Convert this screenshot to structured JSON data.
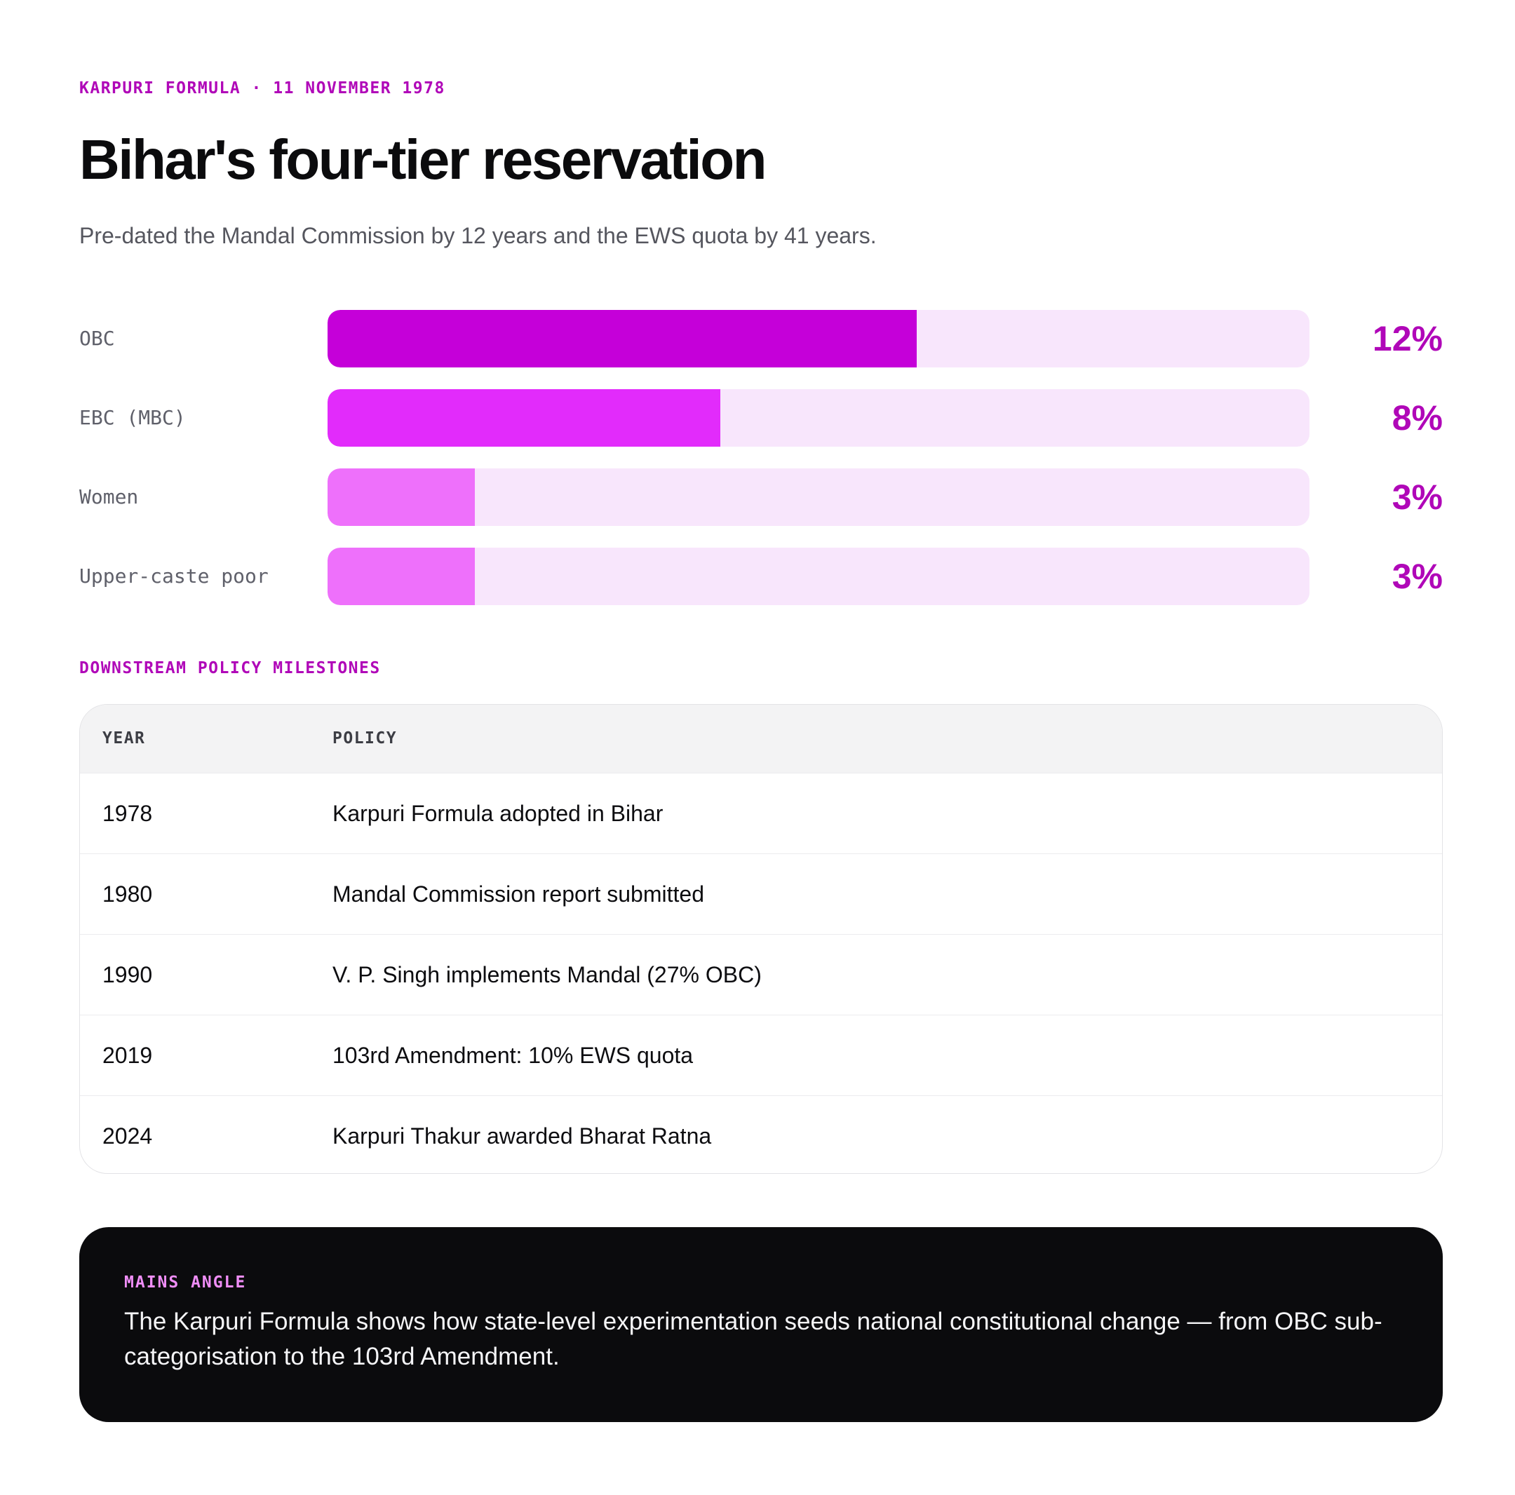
{
  "eyebrow": "KARPURI FORMULA · 11 NOVEMBER 1978",
  "title": "Bihar's four-tier reservation",
  "subtitle": "Pre-dated the Mandal Commission by 12 years and the EWS quota by 41 years.",
  "chart_data": {
    "type": "bar",
    "orientation": "horizontal",
    "categories": [
      "OBC",
      "EBC (MBC)",
      "Women",
      "Upper-caste poor"
    ],
    "values": [
      12,
      8,
      3,
      3
    ],
    "value_labels": [
      "12%",
      "8%",
      "3%",
      "3%"
    ],
    "unit": "%",
    "xlim": [
      0,
      20
    ],
    "colors": [
      "#c500d9",
      "#e22bfb",
      "#ee70fb",
      "#ee70fb"
    ],
    "track_color": "#f8e6fc",
    "grid": false
  },
  "milestones": {
    "section_label": "DOWNSTREAM POLICY MILESTONES",
    "headers": {
      "year": "YEAR",
      "policy": "POLICY"
    },
    "rows": [
      {
        "year": "1978",
        "policy": "Karpuri Formula adopted in Bihar"
      },
      {
        "year": "1980",
        "policy": "Mandal Commission report submitted"
      },
      {
        "year": "1990",
        "policy": "V. P. Singh implements Mandal (27% OBC)"
      },
      {
        "year": "2019",
        "policy": "103rd Amendment: 10% EWS quota"
      },
      {
        "year": "2024",
        "policy": "Karpuri Thakur awarded Bharat Ratna"
      }
    ]
  },
  "callout": {
    "label": "MAINS ANGLE",
    "text": "The Karpuri Formula shows how state-level experimentation seeds national constitutional change — from OBC sub-categorisation to the 103rd Amendment."
  },
  "colors": {
    "accent": "#b007b8",
    "callout_bg": "#0b0b0d",
    "callout_label": "#f08ef7"
  }
}
